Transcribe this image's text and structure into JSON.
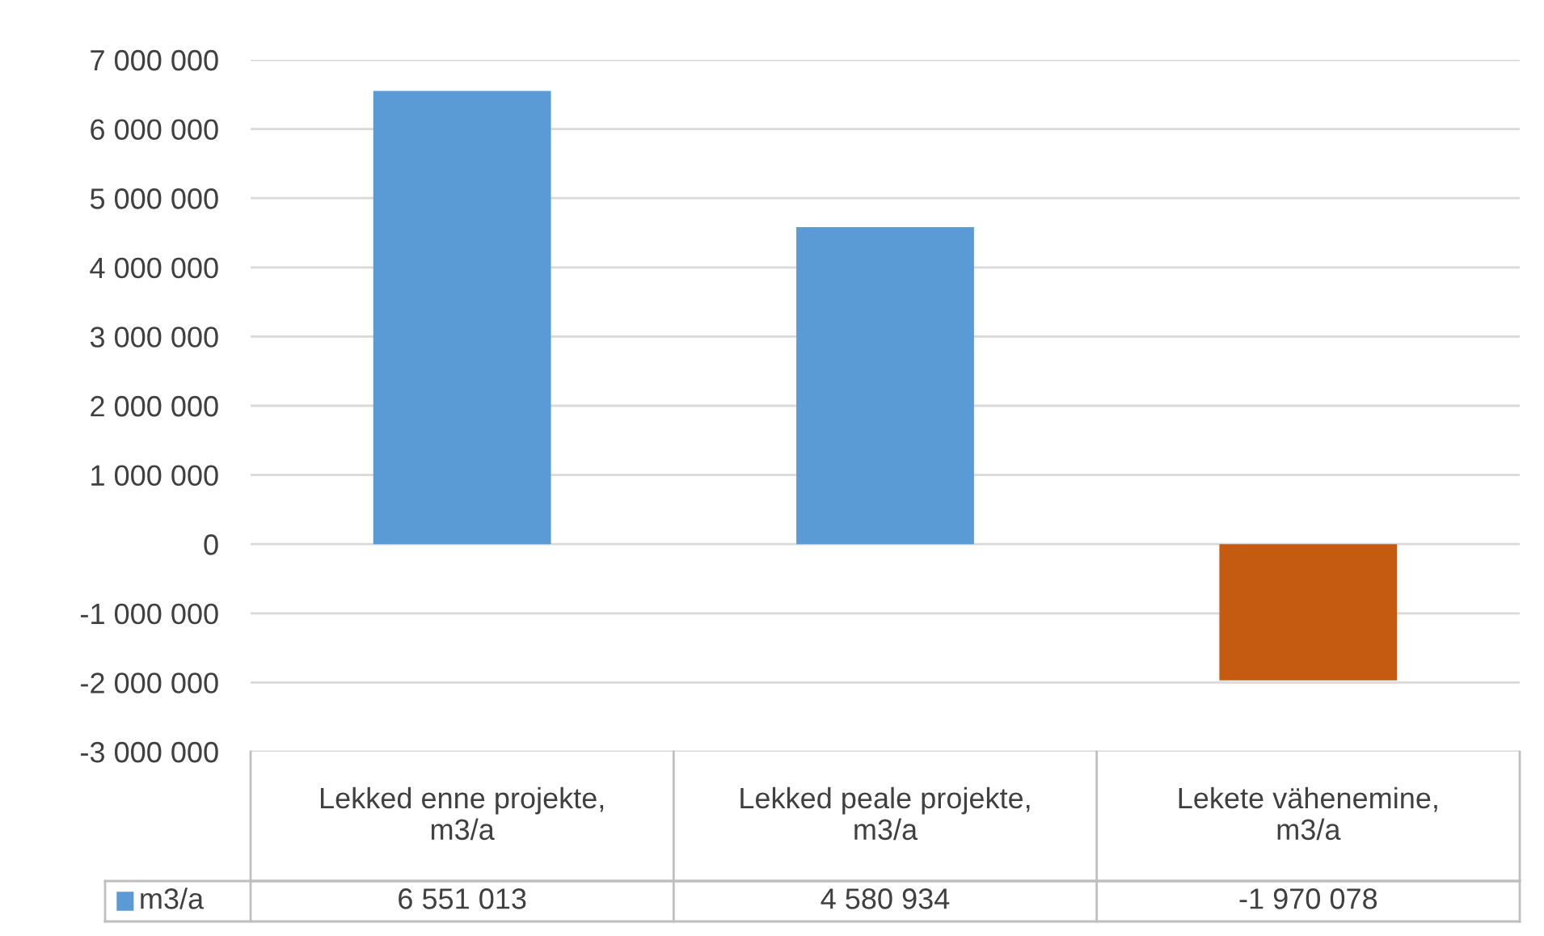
{
  "chart_data": {
    "type": "bar",
    "categories": [
      "Lekked enne projekte,\nm3/a",
      "Lekked peale projekte,\nm3/a",
      "Lekete vähenemine,\nm3/a"
    ],
    "series": [
      {
        "name": "m3/a",
        "color": "#5b9bd5",
        "colors": [
          "#5b9bd5",
          "#5b9bd5",
          "#c55a11"
        ],
        "values": [
          6551013,
          4580934,
          -1970078
        ],
        "value_labels": [
          "6 551 013",
          "4 580 934",
          "-1 970 078"
        ]
      }
    ],
    "ylim": [
      -3000000,
      7000000
    ],
    "yticks": [
      {
        "value": -3000000,
        "label": "-3 000 000"
      },
      {
        "value": -2000000,
        "label": "-2 000 000"
      },
      {
        "value": -1000000,
        "label": "-1 000 000"
      },
      0,
      {
        "value": 1000000,
        "label": "1 000 000"
      },
      {
        "value": 2000000,
        "label": "2 000 000"
      },
      {
        "value": 3000000,
        "label": "3 000 000"
      },
      {
        "value": 4000000,
        "label": "4 000 000"
      },
      {
        "value": 5000000,
        "label": "5 000 000"
      },
      {
        "value": 6000000,
        "label": "6 000 000"
      },
      {
        "value": 7000000,
        "label": "7 000 000"
      }
    ],
    "grid": "y"
  }
}
